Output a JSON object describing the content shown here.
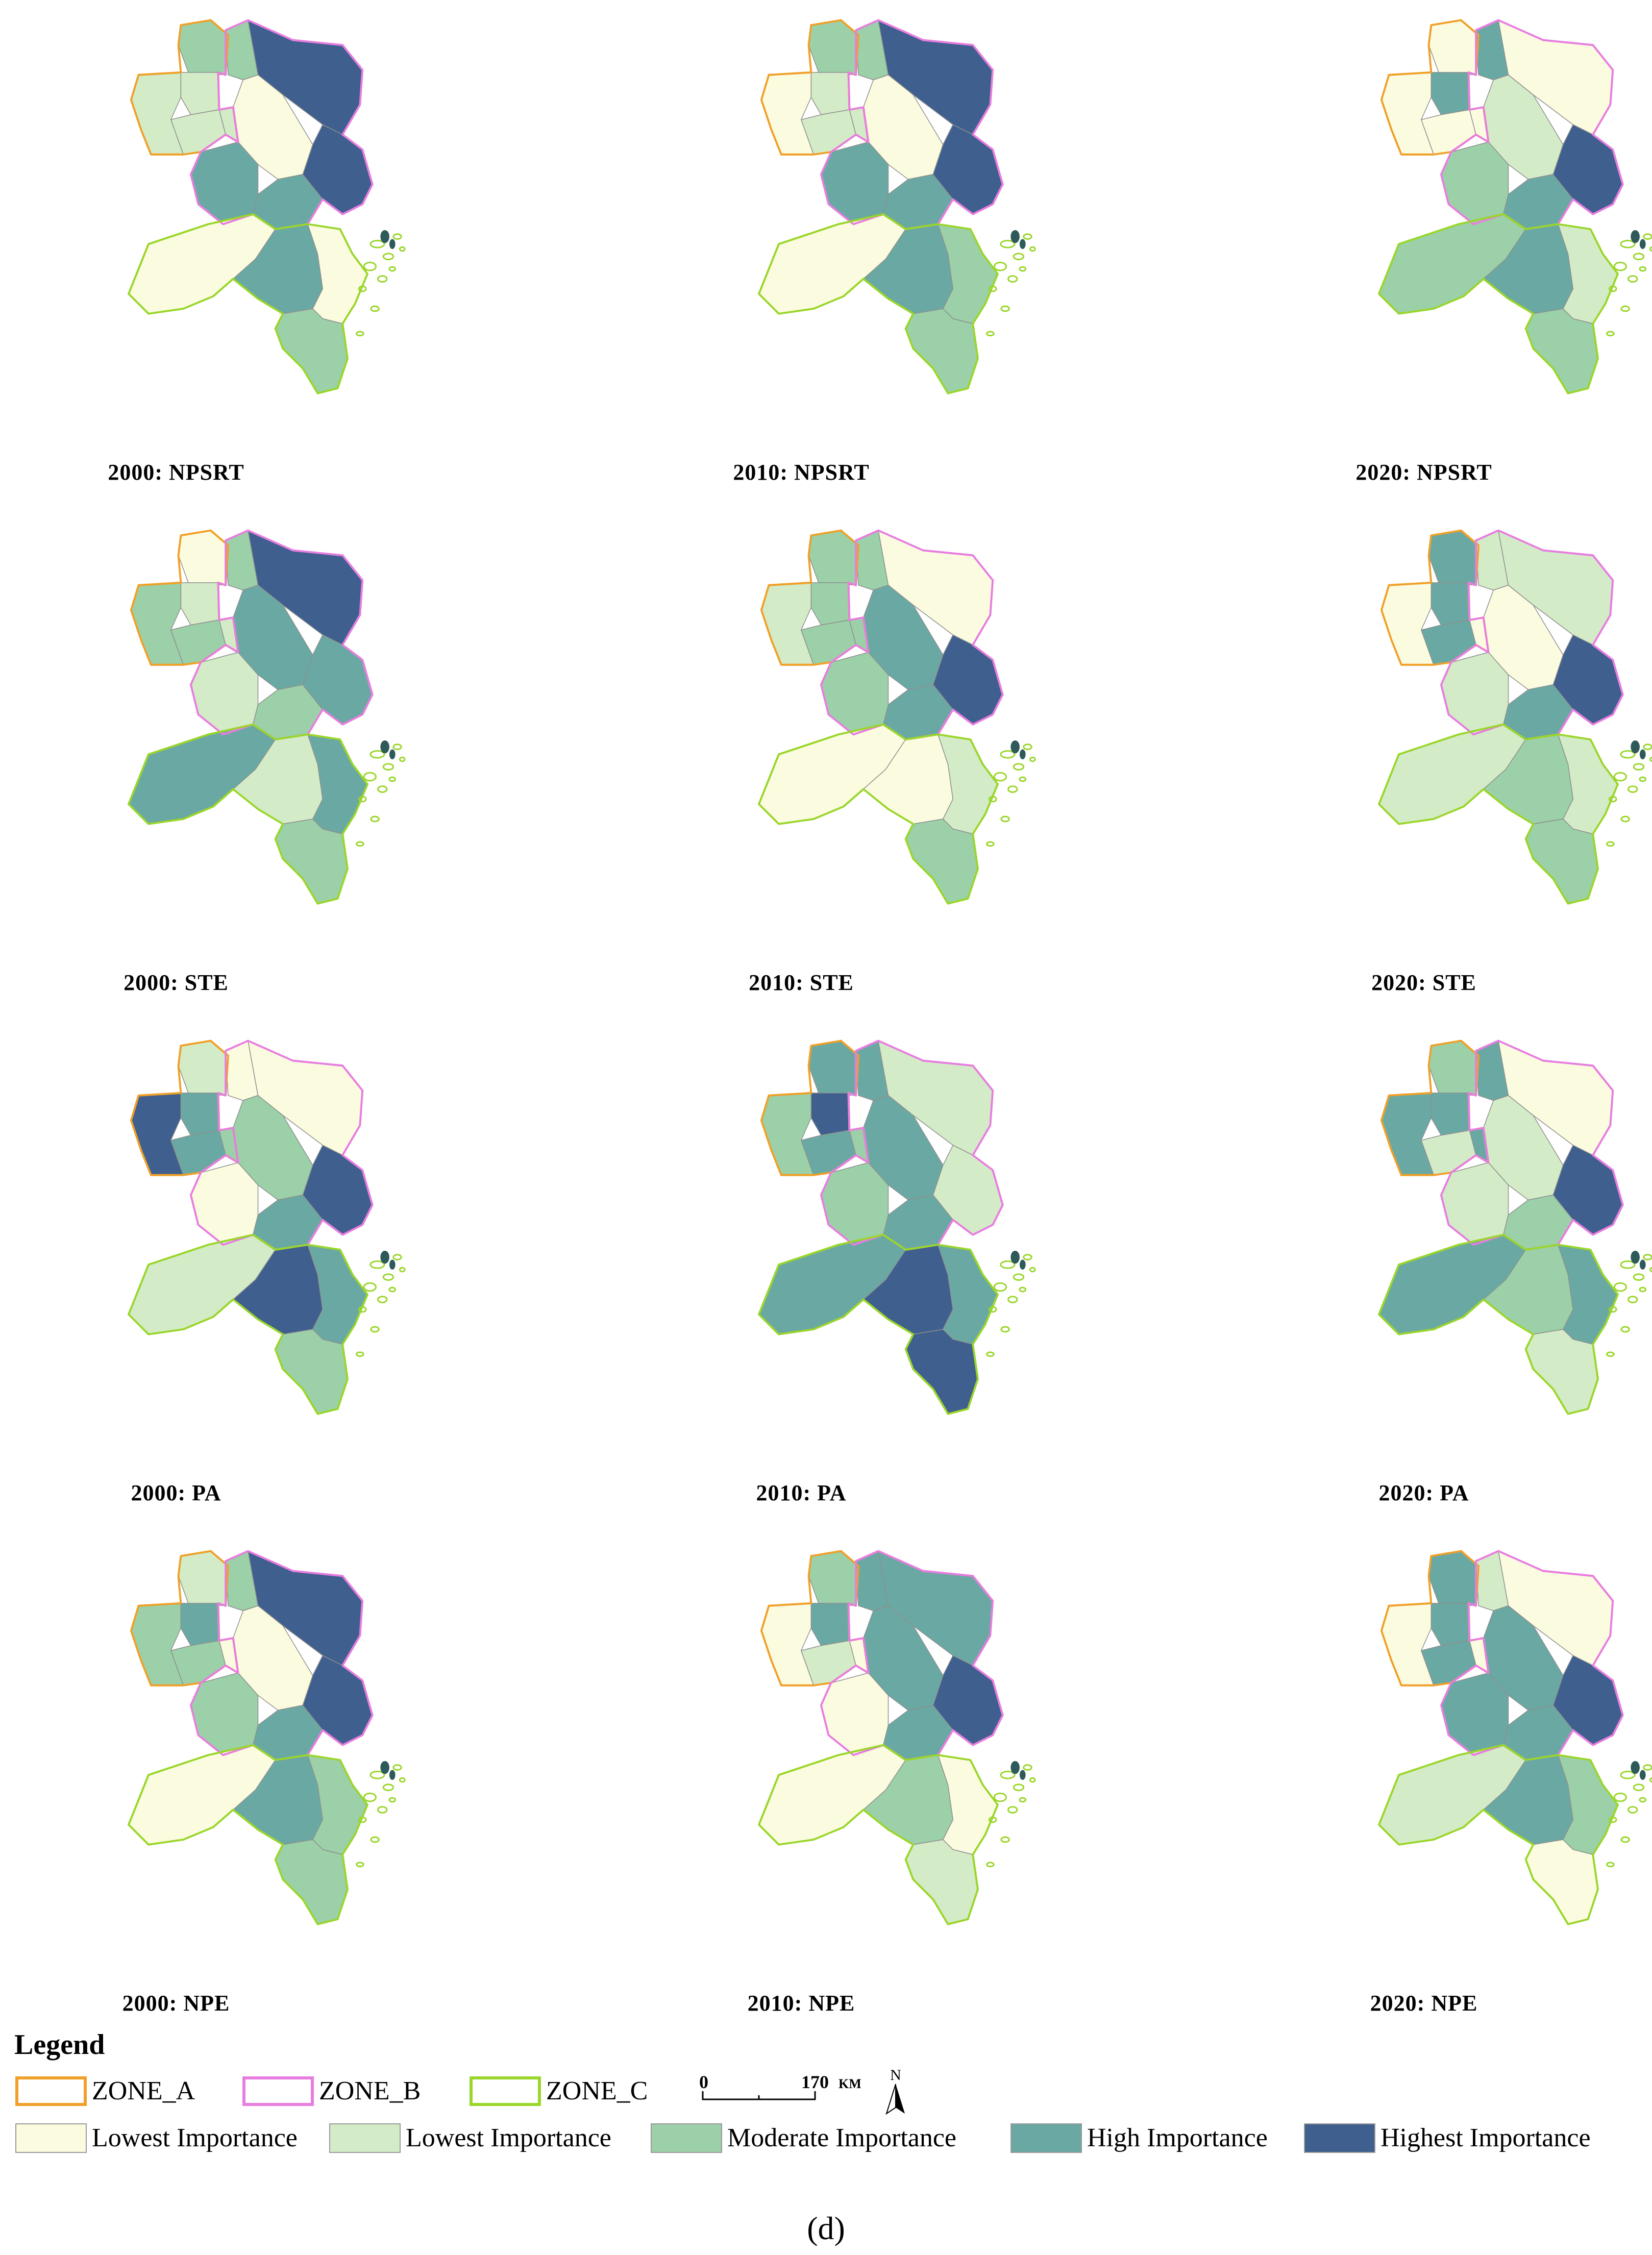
{
  "figure_label": "(d)",
  "colors": {
    "zone_a": "#f0a028",
    "zone_b": "#e87de0",
    "zone_c": "#9ad62a",
    "class1": "#fbfbdf",
    "class2": "#d3ebc7",
    "class3": "#9bd0a8",
    "class4": "#6aa9a3",
    "class5": "#3f5f8e"
  },
  "maps": [
    {
      "caption": "2000: NPSRT",
      "classes": [
        3,
        2,
        2,
        2,
        2,
        3,
        5,
        5,
        1,
        4,
        4,
        1,
        4,
        1,
        3
      ]
    },
    {
      "caption": "2010: NPSRT",
      "classes": [
        3,
        1,
        2,
        2,
        2,
        3,
        5,
        5,
        1,
        4,
        4,
        1,
        4,
        3,
        3
      ]
    },
    {
      "caption": "2020: NPSRT",
      "classes": [
        1,
        1,
        4,
        1,
        1,
        4,
        1,
        5,
        2,
        4,
        3,
        3,
        4,
        2,
        3
      ]
    },
    {
      "caption": "2000: STE",
      "classes": [
        1,
        3,
        2,
        3,
        2,
        3,
        5,
        4,
        4,
        3,
        2,
        4,
        2,
        4,
        3
      ]
    },
    {
      "caption": "2010: STE",
      "classes": [
        3,
        2,
        3,
        3,
        3,
        3,
        1,
        5,
        4,
        4,
        3,
        1,
        1,
        2,
        3
      ]
    },
    {
      "caption": "2020: STE",
      "classes": [
        4,
        1,
        4,
        4,
        1,
        2,
        2,
        5,
        1,
        4,
        2,
        2,
        3,
        2,
        3
      ]
    },
    {
      "caption": "2000: PA",
      "classes": [
        2,
        5,
        4,
        4,
        3,
        1,
        1,
        5,
        3,
        4,
        1,
        2,
        5,
        4,
        3
      ]
    },
    {
      "caption": "2010: PA",
      "classes": [
        4,
        3,
        5,
        4,
        3,
        4,
        2,
        2,
        4,
        4,
        3,
        4,
        5,
        4,
        5
      ]
    },
    {
      "caption": "2020: PA",
      "classes": [
        3,
        4,
        4,
        2,
        4,
        4,
        1,
        5,
        2,
        3,
        2,
        4,
        3,
        4,
        2
      ]
    },
    {
      "caption": "2000: NPE",
      "classes": [
        2,
        3,
        4,
        3,
        1,
        3,
        5,
        5,
        1,
        4,
        3,
        1,
        4,
        3,
        3
      ]
    },
    {
      "caption": "2010: NPE",
      "classes": [
        3,
        1,
        4,
        2,
        1,
        4,
        4,
        5,
        4,
        4,
        1,
        1,
        3,
        1,
        2
      ]
    },
    {
      "caption": "2020: NPE",
      "classes": [
        4,
        1,
        4,
        4,
        1,
        2,
        1,
        5,
        4,
        4,
        4,
        2,
        4,
        3,
        1
      ]
    }
  ],
  "legend": {
    "title": "Legend",
    "zones": [
      "ZONE_A",
      "ZONE_B",
      "ZONE_C"
    ],
    "scale_zero": "0",
    "scale_max": "170",
    "scale_unit": "KM",
    "north": "N",
    "classes": [
      "Lowest Importance",
      "Lowest Importance",
      "Moderate Importance",
      "High Importance",
      "Highest Importance"
    ]
  }
}
